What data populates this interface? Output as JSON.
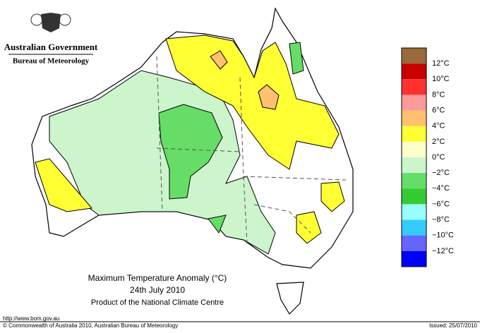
{
  "header": {
    "agency": "Australian Government",
    "bureau": "Bureau of Meteorology"
  },
  "title": "Maximum Temperature Anomaly (°C)",
  "date": "24th July 2010",
  "product": "Product of the National Climate Centre",
  "footer": {
    "url": "http://www.bom.gov.au",
    "copyright": "© Commonwealth of Australia 2010, Australian Bureau of Meteorology",
    "issued": "Issued: 25/07/2010"
  },
  "legend": {
    "colors": [
      "#9b6a3a",
      "#c80000",
      "#ff3030",
      "#ff9a9a",
      "#ffc070",
      "#ffff33",
      "#ffffcc",
      "#ccf5cc",
      "#66dd66",
      "#33cc33",
      "#99ffff",
      "#33ccff",
      "#6666ff",
      "#0000ff"
    ],
    "labels": [
      "12°C",
      "10°C",
      "8°C",
      "6°C",
      "4°C",
      "2°C",
      "0°C",
      "−2°C",
      "−4°C",
      "−6°C",
      "−8°C",
      "−10°C",
      "−12°C"
    ]
  }
}
